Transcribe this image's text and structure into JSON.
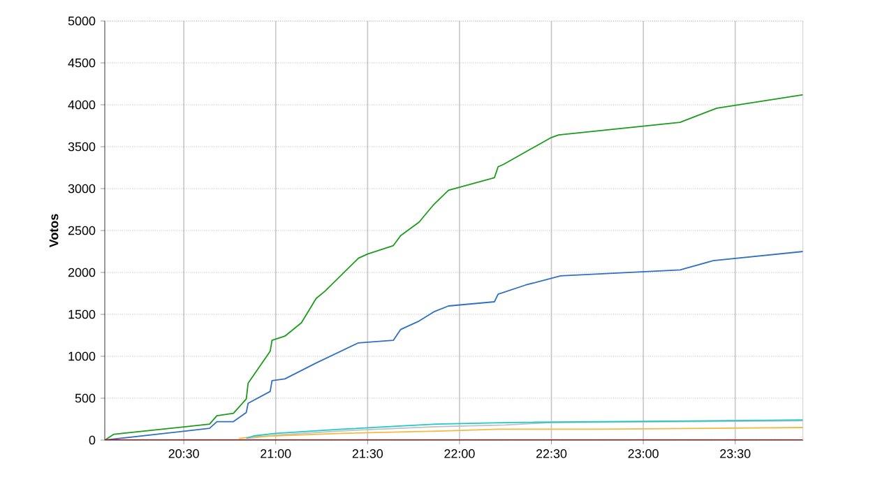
{
  "chart_data": {
    "type": "line",
    "ylabel": "Votos",
    "xlim": [
      20.07,
      23.87
    ],
    "ylim": [
      0,
      5000
    ],
    "xticks": [
      {
        "value": 20.5,
        "label": "20:30"
      },
      {
        "value": 21,
        "label": "21:00"
      },
      {
        "value": 21.5,
        "label": "21:30"
      },
      {
        "value": 22,
        "label": "22:00"
      },
      {
        "value": 22.5,
        "label": "22:30"
      },
      {
        "value": 23,
        "label": "23:00"
      },
      {
        "value": 23.5,
        "label": "23:30"
      }
    ],
    "yticks": [
      0,
      500,
      1000,
      1500,
      2000,
      2500,
      3000,
      3500,
      4000,
      4500,
      5000
    ],
    "grid": true,
    "marker": "none",
    "line_style": "solid",
    "series": [
      {
        "color": "#1a9c1a",
        "x": [
          20.07,
          20.12,
          20.64,
          20.68,
          20.77,
          20.84,
          20.85,
          20.97,
          20.98,
          21.05,
          21.14,
          21.22,
          21.27,
          21.45,
          21.5,
          21.64,
          21.68,
          21.78,
          21.86,
          21.94,
          22.19,
          22.21,
          22.24,
          22.5,
          22.54,
          23.2,
          23.4,
          23.87
        ],
        "values": [
          0,
          70,
          190,
          290,
          320,
          490,
          680,
          1060,
          1190,
          1240,
          1400,
          1690,
          1780,
          2170,
          2220,
          2320,
          2440,
          2600,
          2810,
          2980,
          3130,
          3260,
          3290,
          3610,
          3640,
          3790,
          3960,
          4120
        ]
      },
      {
        "color": "#2f6fc4",
        "x": [
          20.07,
          20.64,
          20.68,
          20.77,
          20.84,
          20.85,
          20.97,
          20.98,
          21.05,
          21.22,
          21.45,
          21.64,
          21.68,
          21.78,
          21.86,
          21.94,
          22.19,
          22.21,
          22.36,
          22.5,
          22.55,
          23.2,
          23.38,
          23.87
        ],
        "values": [
          0,
          140,
          220,
          220,
          330,
          440,
          580,
          710,
          730,
          920,
          1160,
          1190,
          1320,
          1420,
          1530,
          1600,
          1650,
          1740,
          1850,
          1930,
          1960,
          2030,
          2140,
          2250
        ]
      },
      {
        "color": "#c0c0c0",
        "x": [
          20.85,
          21.0,
          21.36,
          21.87,
          22.25,
          22.5,
          23.87
        ],
        "values": [
          20,
          60,
          110,
          160,
          180,
          210,
          230
        ]
      },
      {
        "color": "#f5b840",
        "x": [
          20.8,
          20.88,
          21.36,
          21.92,
          22.21,
          22.77,
          23.87
        ],
        "values": [
          20,
          40,
          80,
          110,
          130,
          130,
          150
        ]
      },
      {
        "color": "#22c8c8",
        "x": [
          20.84,
          20.88,
          21.0,
          21.36,
          21.87,
          22.27,
          23.87
        ],
        "values": [
          20,
          50,
          80,
          130,
          190,
          210,
          240
        ]
      },
      {
        "color": "#c00000",
        "x": [
          20.07,
          23.87
        ],
        "values": [
          0,
          0
        ]
      }
    ]
  }
}
